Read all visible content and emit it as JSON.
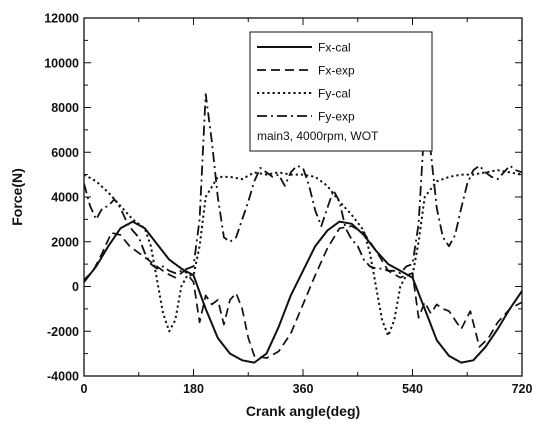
{
  "chart_data": {
    "type": "line",
    "title": "",
    "xlabel": "Crank angle(deg)",
    "ylabel": "Force(N)",
    "xlim": [
      0,
      720
    ],
    "ylim": [
      -4000,
      12000
    ],
    "xticks": [
      0,
      180,
      360,
      540,
      720
    ],
    "yticks": [
      -4000,
      -2000,
      0,
      2000,
      4000,
      6000,
      8000,
      10000,
      12000
    ],
    "grid": false,
    "legend_position": "top-right",
    "annotation": "main3, 4000rpm, WOT",
    "series": [
      {
        "name": "Fx-cal",
        "style": "solid",
        "x": [
          0,
          20,
          40,
          60,
          80,
          100,
          120,
          140,
          160,
          180,
          200,
          220,
          240,
          260,
          280,
          300,
          320,
          340,
          360,
          380,
          400,
          420,
          440,
          460,
          480,
          500,
          520,
          540,
          560,
          580,
          600,
          620,
          640,
          660,
          680,
          700,
          720
        ],
        "y": [
          200,
          900,
          1800,
          2600,
          2900,
          2600,
          1900,
          1200,
          800,
          500,
          -1000,
          -2300,
          -3000,
          -3300,
          -3400,
          -3000,
          -1800,
          -400,
          700,
          1800,
          2500,
          2900,
          2800,
          2300,
          1600,
          1000,
          700,
          400,
          -1000,
          -2400,
          -3100,
          -3400,
          -3300,
          -2700,
          -1900,
          -1000,
          -200
        ]
      },
      {
        "name": "Fx-exp",
        "style": "dash",
        "x": [
          0,
          15,
          30,
          45,
          60,
          75,
          90,
          105,
          120,
          135,
          150,
          165,
          180,
          190,
          200,
          210,
          220,
          230,
          240,
          250,
          260,
          270,
          280,
          300,
          320,
          340,
          360,
          380,
          400,
          420,
          440,
          460,
          480,
          500,
          520,
          540,
          550,
          560,
          570,
          580,
          590,
          600,
          610,
          620,
          635,
          650,
          665,
          680,
          700,
          720
        ],
        "y": [
          300,
          700,
          1500,
          2400,
          2300,
          1800,
          1500,
          1200,
          900,
          600,
          400,
          700,
          200,
          -1600,
          -400,
          -800,
          -600,
          -1700,
          -600,
          -300,
          -1000,
          -2300,
          -3100,
          -3200,
          -2900,
          -2100,
          -800,
          500,
          1700,
          2600,
          2700,
          2400,
          1600,
          700,
          400,
          600,
          -1400,
          -700,
          -1200,
          -800,
          -1000,
          -1100,
          -1500,
          -1900,
          -1100,
          -2700,
          -2300,
          -1600,
          -1000,
          -700
        ]
      },
      {
        "name": "Fy-cal",
        "style": "dot",
        "x": [
          0,
          20,
          40,
          60,
          80,
          100,
          110,
          120,
          130,
          140,
          150,
          160,
          170,
          180,
          190,
          200,
          220,
          240,
          260,
          280,
          300,
          320,
          340,
          360,
          380,
          400,
          420,
          440,
          460,
          470,
          480,
          490,
          500,
          510,
          520,
          530,
          540,
          550,
          560,
          580,
          600,
          620,
          640,
          660,
          680,
          700,
          720
        ],
        "y": [
          5000,
          4700,
          4200,
          3600,
          3000,
          2600,
          1800,
          300,
          -1200,
          -2000,
          -1500,
          0,
          500,
          500,
          1800,
          4000,
          4900,
          4900,
          4800,
          5100,
          5000,
          5100,
          5000,
          5000,
          4900,
          4500,
          3800,
          3200,
          2500,
          1500,
          0,
          -1500,
          -2200,
          -1500,
          0,
          500,
          500,
          2000,
          4000,
          4700,
          4900,
          5000,
          5000,
          5100,
          5200,
          5100,
          5000
        ]
      },
      {
        "name": "Fy-exp",
        "style": "dashdot",
        "x": [
          0,
          10,
          20,
          30,
          40,
          50,
          60,
          70,
          80,
          90,
          100,
          110,
          120,
          130,
          140,
          150,
          160,
          170,
          180,
          190,
          200,
          210,
          220,
          230,
          240,
          250,
          260,
          270,
          280,
          290,
          300,
          310,
          320,
          330,
          340,
          350,
          360,
          370,
          380,
          390,
          400,
          410,
          420,
          430,
          440,
          450,
          460,
          470,
          480,
          490,
          500,
          510,
          520,
          530,
          540,
          550,
          560,
          570,
          580,
          590,
          600,
          610,
          620,
          630,
          640,
          650,
          660,
          670,
          680,
          690,
          700,
          710,
          720
        ],
        "y": [
          4600,
          3600,
          3000,
          3500,
          3600,
          3900,
          3500,
          2900,
          2500,
          2200,
          1500,
          1000,
          800,
          900,
          700,
          600,
          700,
          800,
          900,
          3000,
          8600,
          6500,
          4000,
          2200,
          2000,
          2200,
          3000,
          3800,
          4700,
          5300,
          5100,
          4900,
          5000,
          4500,
          5100,
          5400,
          5300,
          4500,
          3400,
          2700,
          3500,
          4300,
          3800,
          2600,
          2100,
          1800,
          1200,
          900,
          800,
          800,
          700,
          700,
          600,
          900,
          1000,
          2800,
          7400,
          6000,
          3500,
          2200,
          1800,
          2300,
          3500,
          4600,
          5200,
          5400,
          5100,
          4900,
          4800,
          5100,
          5400,
          5200,
          5100
        ]
      }
    ]
  }
}
